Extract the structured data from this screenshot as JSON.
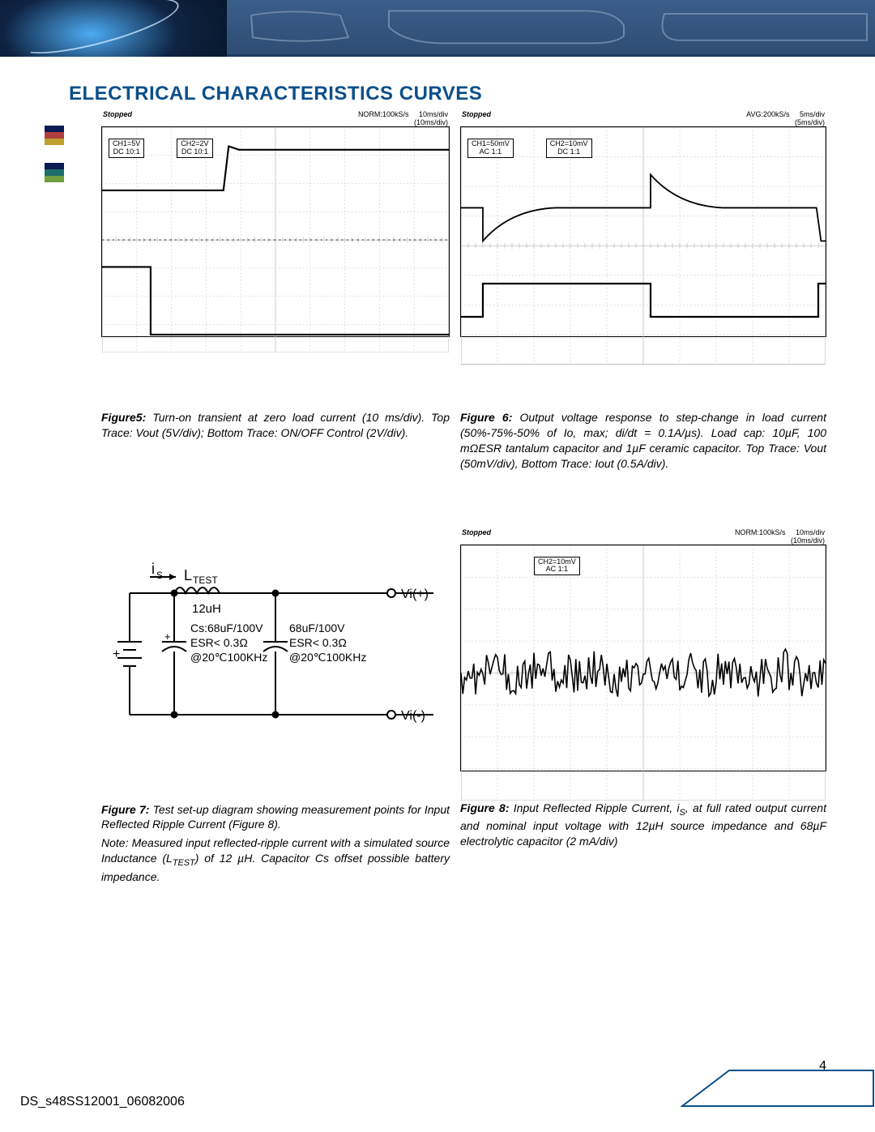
{
  "banner": {
    "outline_color": "#6e88a8",
    "bg_gradient_top": "#3a5e8a",
    "bg_gradient_bottom": "#2f4d73"
  },
  "colorKey": [
    {
      "stripes": [
        "#0a1a52",
        "#b04040",
        "#bfa030"
      ]
    },
    {
      "stripes": [
        "#0a1a52",
        "#1f6e6e",
        "#6f9f3f"
      ]
    }
  ],
  "title": {
    "text": "ELECTRICAL CHARACTERISTICS CURVES",
    "color": "#0b4f8a"
  },
  "figures": {
    "fig5": {
      "scope": {
        "stopped": "Stopped",
        "rate": "NORM:100kS/s",
        "time_top": "10ms/div",
        "time_sub": "(10ms/div)",
        "ch1": {
          "label": "CH1=5V",
          "coupling": "DC 10:1"
        },
        "ch2": {
          "label": "CH2=2V",
          "coupling": "DC 10:1"
        },
        "grid": {
          "cols": 10,
          "rows": 8,
          "grid_color": "#bdbdbd",
          "trace_color": "#000000",
          "traces": [
            {
              "type": "step_rise",
              "y_before": 0.28,
              "y_after": 0.1,
              "x_step": 0.35
            },
            {
              "type": "step_fall",
              "y_before": 0.62,
              "y_after": 0.92,
              "x_step": 0.14
            }
          ]
        }
      },
      "caption_label": "Figure5:",
      "caption_text": " Turn-on transient at zero load current (10 ms/div). Top Trace: Vout (5V/div); Bottom Trace: ON/OFF Control (2V/div)."
    },
    "fig6": {
      "scope": {
        "stopped": "Stopped",
        "rate": "AVG:200kS/s",
        "time_top": "5ms/div",
        "time_sub": "(5ms/div)",
        "ch1": {
          "label": "CH1=50mV",
          "coupling": "AC 1:1"
        },
        "ch2": {
          "label": "CH2=10mV",
          "coupling": "DC 1:1"
        },
        "grid": {
          "cols": 10,
          "rows": 8,
          "grid_color": "#bdbdbd",
          "trace_color": "#000000",
          "traces": [
            {
              "type": "transient_pair",
              "y_base": 0.34,
              "x1": 0.06,
              "x2": 0.52,
              "spike": 0.14
            },
            {
              "type": "square",
              "y_low": 0.8,
              "y_high": 0.66,
              "x1": 0.06,
              "x2": 0.52
            }
          ]
        }
      },
      "caption_label": "Figure 6:",
      "caption_text": " Output voltage response to step-change in load current (50%-75%-50% of Io, max; di/dt = 0.1A/µs). Load cap: 10µF, 100 mΩESR tantalum capacitor and 1µF ceramic capacitor. Top Trace: Vout (50mV/div), Bottom Trace: Iout (0.5A/div)."
    },
    "fig7": {
      "circuit": {
        "is_label": "i",
        "is_sub": "S",
        "ltest_label": "L",
        "ltest_sub": "TEST",
        "inductor_value": "12uH",
        "cap1_lines": [
          "Cs:68uF/100V",
          "ESR< 0.3Ω",
          "@20℃100KHz"
        ],
        "cap2_lines": [
          "68uF/100V",
          "ESR< 0.3Ω",
          "@20℃100KHz"
        ],
        "vi_pos": "Vi(+)",
        "vi_neg": "Vi(-)",
        "wire_color": "#000000",
        "font_size": 16
      },
      "caption_label": "Figure 7:",
      "caption_text": " Test set-up diagram showing measurement points for Input Reflected Ripple Current (Figure 8).",
      "note": "Note: Measured input reflected-ripple current with a simulated source Inductance (L<sub>TEST</sub>) of 12 µH. Capacitor Cs offset possible battery impedance."
    },
    "fig8": {
      "scope": {
        "stopped": "Stopped",
        "rate": "NORM:100kS/s",
        "time_top": "10ms/div",
        "time_sub": "(10ms/div)",
        "ch2_only": {
          "label": "CH2=10mV",
          "coupling": "AC 1:1"
        },
        "grid": {
          "cols": 10,
          "rows": 8,
          "grid_color": "#bdbdbd",
          "trace_color": "#000000",
          "noise_y": 0.5,
          "noise_amp": 0.08
        }
      },
      "caption_label": "Figure 8:",
      "caption_text_html": " Input Reflected Ripple Current, i<sub>S</sub>, at full rated output current and nominal input voltage with 12µH source impedance and 68µF electrolytic capacitor (2 mA/div)"
    }
  },
  "footer": {
    "doc_id": "DS_s48SS12001_06082006",
    "page": "4"
  },
  "corner": {
    "stroke": "#0b4f8a",
    "width": 2
  }
}
